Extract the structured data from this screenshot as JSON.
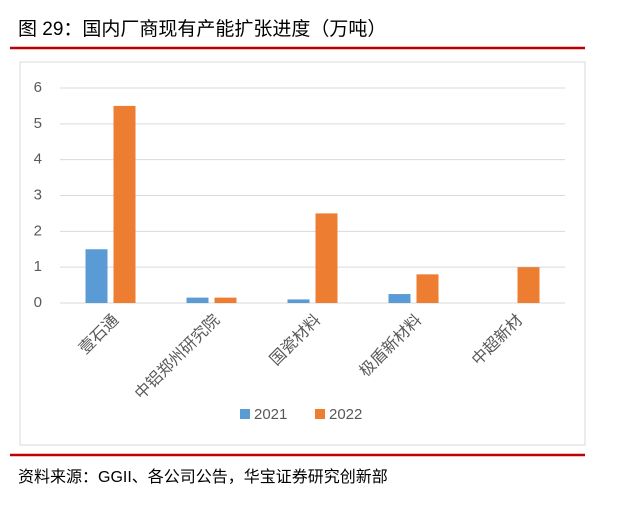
{
  "chart_data": {
    "type": "bar",
    "title": "图 29：国内厂商现有产能扩张进度（万吨）",
    "source": "资料来源：GGII、各公司公告，华宝证券研究创新部",
    "categories": [
      "壹石通",
      "中铝郑州研究院",
      "国瓷材料",
      "极盾新材料",
      "中超新材"
    ],
    "series": [
      {
        "name": "2021",
        "color": "#5b9bd5",
        "values": [
          1.5,
          0.15,
          0.1,
          0.25,
          0
        ]
      },
      {
        "name": "2022",
        "color": "#ed7d31",
        "values": [
          5.5,
          0.15,
          2.5,
          0.8,
          1.0
        ]
      }
    ],
    "ylim": [
      0,
      6
    ],
    "yticks": [
      0,
      1,
      2,
      3,
      4,
      5,
      6
    ],
    "grid": true,
    "legend": "bottom"
  }
}
